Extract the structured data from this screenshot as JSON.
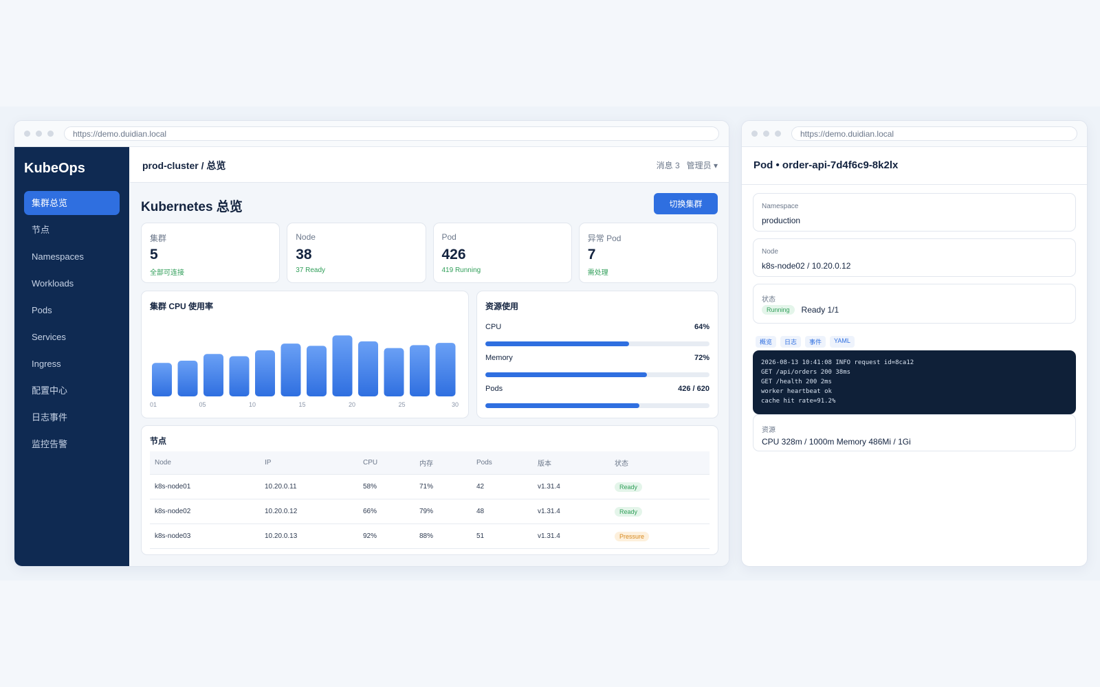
{
  "browser": {
    "url": "https://demo.duidian.local"
  },
  "sidebar": {
    "logo": "KubeOps",
    "items": [
      {
        "label": "集群总览",
        "active": true
      },
      {
        "label": "节点"
      },
      {
        "label": "Namespaces"
      },
      {
        "label": "Workloads"
      },
      {
        "label": "Pods"
      },
      {
        "label": "Services"
      },
      {
        "label": "Ingress"
      },
      {
        "label": "配置中心"
      },
      {
        "label": "日志事件"
      },
      {
        "label": "监控告警"
      }
    ]
  },
  "header": {
    "breadcrumb": "prod-cluster / 总览",
    "messages": "消息 3",
    "user": "管理员 ▾"
  },
  "page": {
    "title": "Kubernetes 总览",
    "switch_button": "切换集群"
  },
  "stats": [
    {
      "label": "集群",
      "value": "5",
      "sub": "全部可连接"
    },
    {
      "label": "Node",
      "value": "38",
      "sub": "37 Ready"
    },
    {
      "label": "Pod",
      "value": "426",
      "sub": "419 Running"
    },
    {
      "label": "异常 Pod",
      "value": "7",
      "sub": "需处理"
    }
  ],
  "cpu_chart": {
    "title": "集群 CPU 使用率",
    "x_ticks": [
      "01",
      "05",
      "10",
      "15",
      "20",
      "25",
      "30"
    ]
  },
  "chart_data": {
    "type": "bar",
    "title": "集群 CPU 使用率",
    "values": [
      45,
      48,
      57,
      54,
      62,
      71,
      68,
      82,
      74,
      65,
      69,
      72
    ],
    "x_ticks": [
      "01",
      "05",
      "10",
      "15",
      "20",
      "25",
      "30"
    ],
    "ylim": [
      0,
      100
    ],
    "colors": {
      "top": "#6aa0f5",
      "bottom": "#2f6fe0"
    }
  },
  "resources": {
    "title": "资源使用",
    "items": [
      {
        "name": "CPU",
        "value": "64%",
        "fraction": 0.64
      },
      {
        "name": "Memory",
        "value": "72%",
        "fraction": 0.72
      },
      {
        "name": "Pods",
        "value": "426 / 620",
        "fraction": 0.687
      }
    ]
  },
  "nodes_table": {
    "title": "节点",
    "headers": [
      "Node",
      "IP",
      "CPU",
      "内存",
      "Pods",
      "版本",
      "状态"
    ],
    "rows": [
      [
        "k8s-node01",
        "10.20.0.11",
        "58%",
        "71%",
        "42",
        "v1.31.4",
        "Ready"
      ],
      [
        "k8s-node02",
        "10.20.0.12",
        "66%",
        "79%",
        "48",
        "v1.31.4",
        "Ready"
      ],
      [
        "k8s-node03",
        "10.20.0.13",
        "92%",
        "88%",
        "51",
        "v1.31.4",
        "Pressure"
      ]
    ]
  },
  "pod": {
    "title": "Pod  •  order-api-7d4f6c9-8k2lx",
    "namespace_label": "Namespace",
    "namespace": "production",
    "node_label": "Node",
    "node": "k8s-node02 / 10.20.0.12",
    "status_label": "状态",
    "status_badge": "Running",
    "status_text": "Ready 1/1",
    "tabs": [
      "概览",
      "日志",
      "事件",
      "YAML"
    ],
    "logs": [
      "2026-08-13 10:41:08 INFO request id=8ca12",
      "GET /api/orders 200 38ms",
      "GET /health 200 2ms",
      "worker heartbeat ok",
      "cache hit rate=91.2%"
    ],
    "resources_label": "资源",
    "resources": "CPU 328m / 1000m    Memory 486Mi / 1Gi"
  },
  "colors": {
    "accent": "#2f6fe0",
    "sidebar": "#0f2a52",
    "ok": "#2f9e58",
    "warn": "#d6891f"
  }
}
